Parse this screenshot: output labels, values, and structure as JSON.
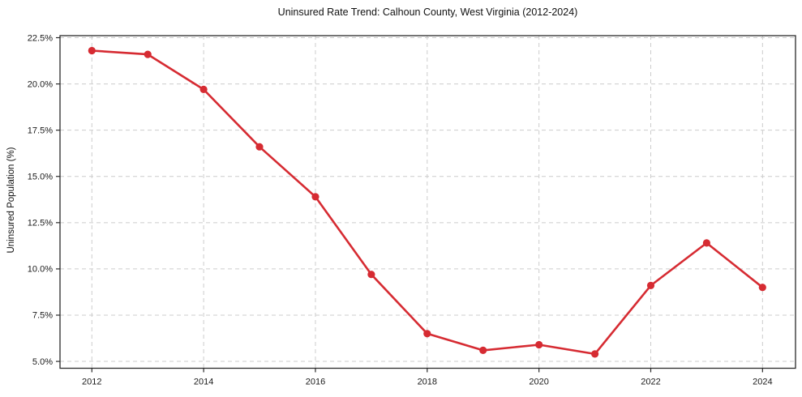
{
  "figure": {
    "title": "Uninsured Rate Trend: Calhoun County, West Virginia (2012-2024)",
    "ylabel": "Uninsured Population (%)"
  },
  "chart_data": {
    "type": "line",
    "title": "Uninsured Rate Trend: Calhoun County, West Virginia (2012-2024)",
    "xlabel": "",
    "ylabel": "Uninsured Population (%)",
    "x": [
      2012,
      2013,
      2014,
      2015,
      2016,
      2017,
      2018,
      2019,
      2020,
      2021,
      2022,
      2023,
      2024
    ],
    "values": [
      21.8,
      21.6,
      19.7,
      16.6,
      13.9,
      9.7,
      6.5,
      5.6,
      5.9,
      5.4,
      9.1,
      11.4,
      9.0
    ],
    "x_ticks": [
      2012,
      2014,
      2016,
      2018,
      2020,
      2022,
      2024
    ],
    "y_ticks": [
      5.0,
      7.5,
      10.0,
      12.5,
      15.0,
      17.5,
      20.0,
      22.5
    ],
    "y_tick_suffix": "%",
    "y_tick_decimals": 1,
    "xlim": [
      2011.43,
      2024.59
    ],
    "ylim": [
      4.63,
      22.61
    ],
    "grid": true,
    "legend": "none",
    "line_color": "#d62b32",
    "grid_color": "#cccccc",
    "spine_color": "#2a2a2a",
    "marker": "o",
    "marker_radius": 4.6,
    "line_width": 2.6
  }
}
